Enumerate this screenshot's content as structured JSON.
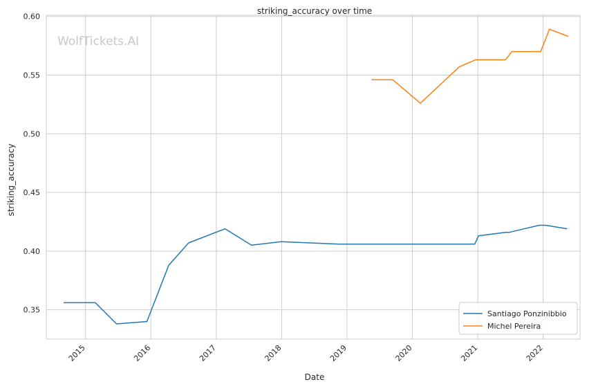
{
  "chart_data": {
    "type": "line",
    "title": "striking_accuracy over time",
    "xlabel": "Date",
    "ylabel": "striking_accuracy",
    "watermark": "WolfTickets.AI",
    "x_tick_labels": [
      "2015",
      "2016",
      "2017",
      "2018",
      "2019",
      "2020",
      "2021",
      "2022"
    ],
    "y_tick_labels": [
      "0.35",
      "0.40",
      "0.45",
      "0.50",
      "0.55",
      "0.60"
    ],
    "xlim": [
      "2014-05-27",
      "2022-07-26"
    ],
    "ylim": [
      0.325,
      0.601
    ],
    "grid": true,
    "legend_position": "lower-right",
    "series": [
      {
        "name": "Santiago Ponzinibbio",
        "color": "#1f77b4",
        "points": [
          [
            "2014-09-01",
            0.356
          ],
          [
            "2015-02-25",
            0.356
          ],
          [
            "2015-06-23",
            0.338
          ],
          [
            "2015-12-10",
            0.34
          ],
          [
            "2016-04-10",
            0.388
          ],
          [
            "2016-07-30",
            0.407
          ],
          [
            "2017-02-19",
            0.419
          ],
          [
            "2017-07-16",
            0.405
          ],
          [
            "2017-12-30",
            0.408
          ],
          [
            "2018-11-17",
            0.406
          ],
          [
            "2020-12-15",
            0.406
          ],
          [
            "2021-01-05",
            0.413
          ],
          [
            "2021-06-05",
            0.416
          ],
          [
            "2021-06-26",
            0.416
          ],
          [
            "2021-12-10",
            0.422
          ],
          [
            "2022-01-15",
            0.422
          ],
          [
            "2022-05-15",
            0.419
          ]
        ]
      },
      {
        "name": "Michel Pereira",
        "color": "#ff7f0e",
        "points": [
          [
            "2019-05-18",
            0.546
          ],
          [
            "2019-09-14",
            0.546
          ],
          [
            "2020-02-15",
            0.526
          ],
          [
            "2020-09-19",
            0.557
          ],
          [
            "2020-12-19",
            0.563
          ],
          [
            "2021-06-05",
            0.563
          ],
          [
            "2021-07-10",
            0.57
          ],
          [
            "2021-12-18",
            0.57
          ],
          [
            "2022-02-05",
            0.589
          ],
          [
            "2022-05-21",
            0.583
          ]
        ]
      }
    ]
  }
}
